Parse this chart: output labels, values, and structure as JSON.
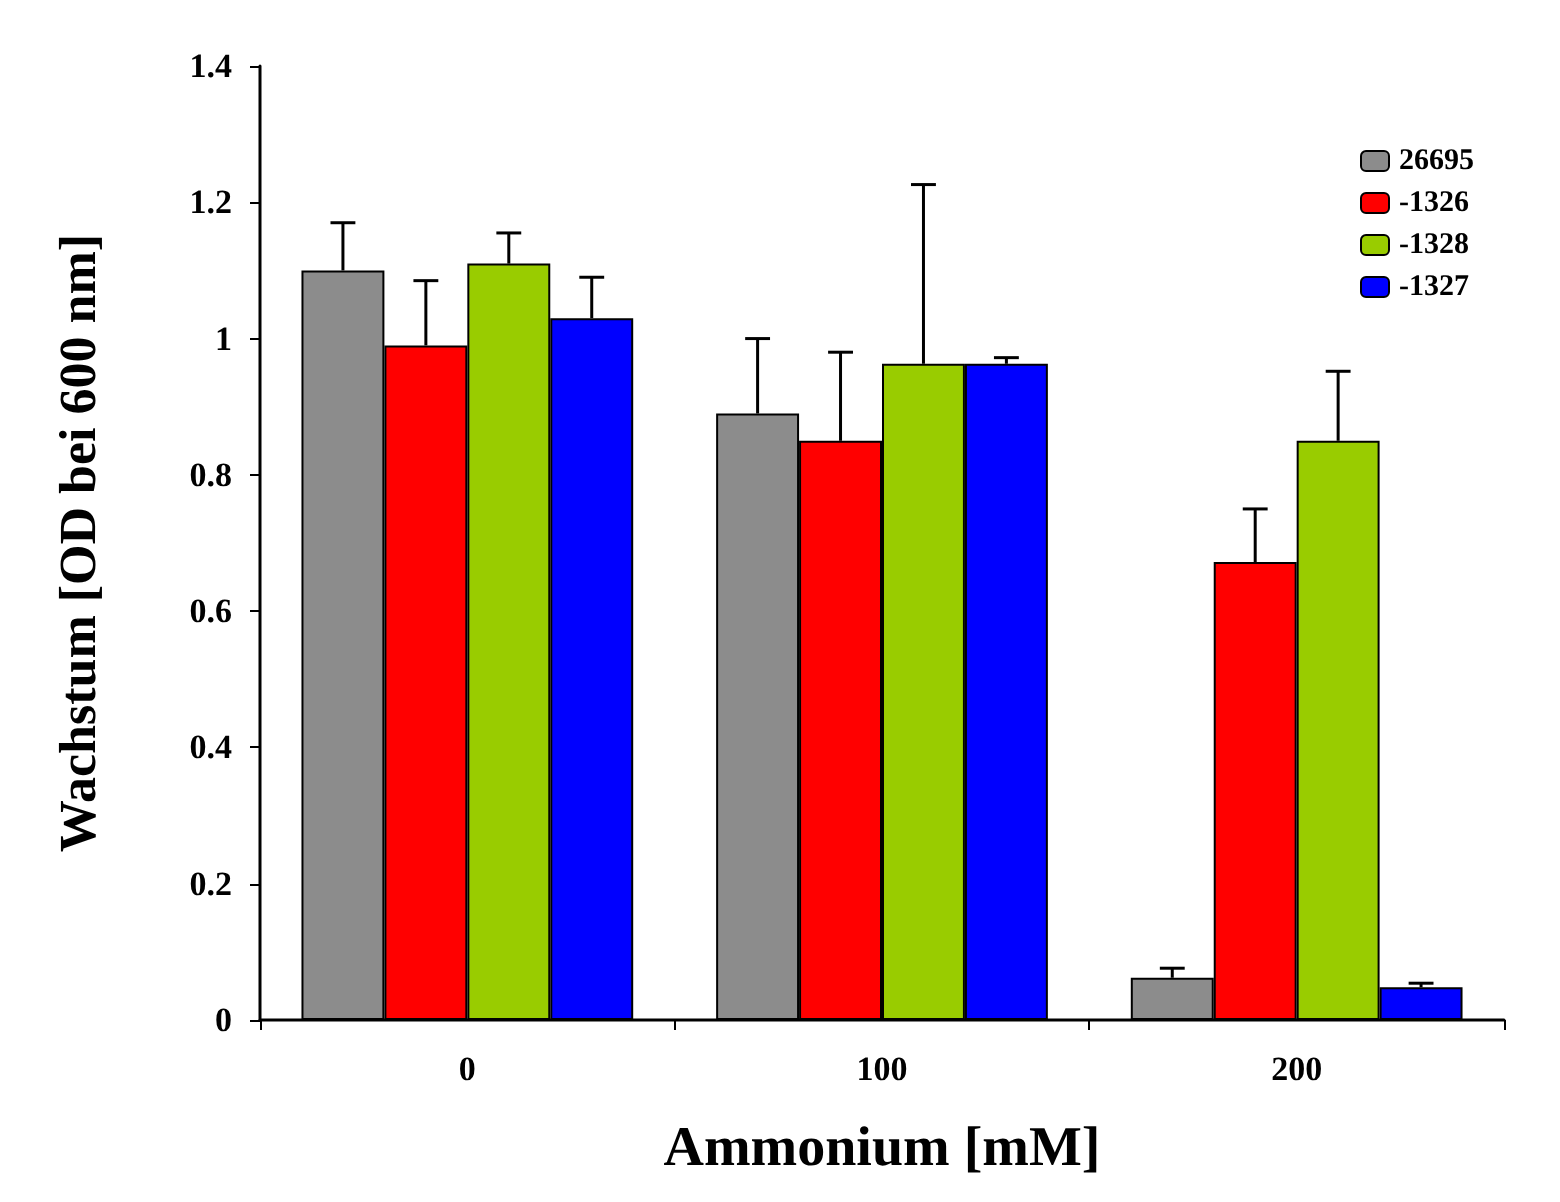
{
  "chart_data": {
    "type": "bar",
    "xlabel": "Ammonium [mM]",
    "ylabel": "Wachstum [OD bei 600 nm]",
    "categories": [
      "0",
      "100",
      "200"
    ],
    "series": [
      {
        "name": "26695",
        "color": "#8c8c8c",
        "values": [
          1.1,
          0.89,
          0.062
        ],
        "errors": [
          [
            1.1,
            1.17
          ],
          [
            0.89,
            1.0
          ],
          [
            0.062,
            0.076
          ]
        ]
      },
      {
        "name": "-1326",
        "color": "#ff0000",
        "values": [
          0.99,
          0.85,
          0.672
        ],
        "errors": [
          [
            0.99,
            1.085
          ],
          [
            0.85,
            0.98
          ],
          [
            0.672,
            0.75
          ]
        ]
      },
      {
        "name": "-1328",
        "color": "#99cc00",
        "values": [
          1.11,
          0.963,
          0.85
        ],
        "errors": [
          [
            1.11,
            1.155
          ],
          [
            0.963,
            1.226
          ],
          [
            0.85,
            0.952
          ]
        ]
      },
      {
        "name": "-1327",
        "color": "#0000ff",
        "values": [
          1.03,
          0.963,
          0.048
        ],
        "errors": [
          [
            1.03,
            1.09
          ],
          [
            0.963,
            0.972
          ],
          [
            0.048,
            0.054
          ]
        ]
      }
    ],
    "ylim": [
      0,
      1.4
    ],
    "yticks": [
      0,
      0.2,
      0.4,
      0.6,
      0.8,
      1,
      1.2,
      1.4
    ],
    "grid": false,
    "legend": "top right"
  }
}
